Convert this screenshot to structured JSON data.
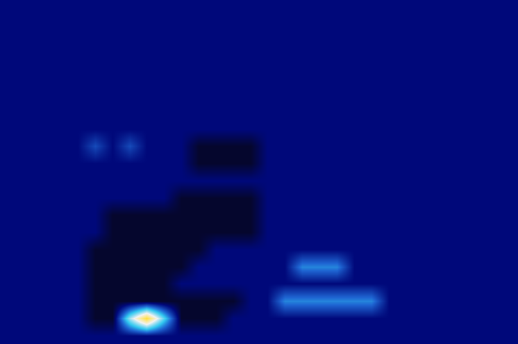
{
  "chart_data": {
    "type": "heatmap",
    "tick_labels": false,
    "xlim": [
      -0.5,
      29.5
    ],
    "ylim": [
      19.5,
      -0.5
    ],
    "zlim": [
      0,
      1
    ],
    "cells": [
      [
        0.12,
        0.12,
        0.12,
        0.12,
        0.12,
        0.12,
        0.12,
        0.12,
        0.12,
        0.12,
        0.12,
        0.12,
        0.12,
        0.12,
        0.12,
        0.12,
        0.12,
        0.12,
        0.12,
        0.12,
        0.12,
        0.12,
        0.12,
        0.12,
        0.12,
        0.12,
        0.12,
        0.12,
        0.12,
        0.12
      ],
      [
        0.12,
        0.12,
        0.12,
        0.12,
        0.12,
        0.12,
        0.12,
        0.12,
        0.12,
        0.12,
        0.12,
        0.12,
        0.12,
        0.12,
        0.12,
        0.12,
        0.12,
        0.12,
        0.12,
        0.12,
        0.12,
        0.12,
        0.12,
        0.12,
        0.12,
        0.12,
        0.12,
        0.12,
        0.12,
        0.12
      ],
      [
        0.12,
        0.12,
        0.12,
        0.12,
        0.12,
        0.12,
        0.12,
        0.12,
        0.12,
        0.12,
        0.12,
        0.12,
        0.12,
        0.12,
        0.12,
        0.12,
        0.12,
        0.12,
        0.12,
        0.12,
        0.12,
        0.12,
        0.12,
        0.12,
        0.12,
        0.12,
        0.12,
        0.12,
        0.12,
        0.12
      ],
      [
        0.12,
        0.12,
        0.12,
        0.12,
        0.12,
        0.12,
        0.12,
        0.12,
        0.12,
        0.12,
        0.12,
        0.12,
        0.12,
        0.12,
        0.12,
        0.12,
        0.12,
        0.12,
        0.12,
        0.12,
        0.12,
        0.12,
        0.12,
        0.12,
        0.12,
        0.12,
        0.12,
        0.12,
        0.12,
        0.12
      ],
      [
        0.12,
        0.12,
        0.12,
        0.12,
        0.12,
        0.12,
        0.12,
        0.12,
        0.12,
        0.12,
        0.12,
        0.12,
        0.12,
        0.12,
        0.12,
        0.12,
        0.12,
        0.12,
        0.12,
        0.12,
        0.12,
        0.12,
        0.12,
        0.12,
        0.12,
        0.12,
        0.12,
        0.12,
        0.12,
        0.12
      ],
      [
        0.12,
        0.12,
        0.12,
        0.12,
        0.12,
        0.12,
        0.12,
        0.12,
        0.12,
        0.12,
        0.12,
        0.12,
        0.12,
        0.12,
        0.12,
        0.12,
        0.12,
        0.12,
        0.12,
        0.12,
        0.12,
        0.12,
        0.12,
        0.12,
        0.12,
        0.12,
        0.12,
        0.12,
        0.12,
        0.12
      ],
      [
        0.12,
        0.12,
        0.12,
        0.12,
        0.12,
        0.12,
        0.12,
        0.12,
        0.12,
        0.12,
        0.12,
        0.12,
        0.12,
        0.12,
        0.12,
        0.12,
        0.12,
        0.12,
        0.12,
        0.12,
        0.12,
        0.12,
        0.12,
        0.12,
        0.12,
        0.12,
        0.12,
        0.12,
        0.12,
        0.12
      ],
      [
        0.12,
        0.12,
        0.12,
        0.12,
        0.12,
        0.12,
        0.12,
        0.12,
        0.12,
        0.12,
        0.12,
        0.12,
        0.12,
        0.12,
        0.12,
        0.12,
        0.12,
        0.12,
        0.12,
        0.12,
        0.12,
        0.12,
        0.12,
        0.12,
        0.12,
        0.12,
        0.12,
        0.12,
        0.12,
        0.12
      ],
      [
        0.12,
        0.12,
        0.12,
        0.12,
        0.12,
        0.25,
        0.12,
        0.25,
        0.12,
        0.12,
        0.12,
        0.02,
        0.02,
        0.02,
        0.02,
        0.12,
        0.12,
        0.12,
        0.12,
        0.12,
        0.12,
        0.12,
        0.12,
        0.12,
        0.12,
        0.12,
        0.12,
        0.12,
        0.12,
        0.12
      ],
      [
        0.12,
        0.12,
        0.12,
        0.12,
        0.12,
        0.12,
        0.12,
        0.12,
        0.12,
        0.12,
        0.12,
        0.02,
        0.02,
        0.02,
        0.02,
        0.12,
        0.12,
        0.12,
        0.12,
        0.12,
        0.12,
        0.12,
        0.12,
        0.12,
        0.12,
        0.12,
        0.12,
        0.12,
        0.12,
        0.12
      ],
      [
        0.12,
        0.12,
        0.12,
        0.12,
        0.12,
        0.12,
        0.12,
        0.12,
        0.12,
        0.12,
        0.12,
        0.12,
        0.12,
        0.12,
        0.12,
        0.12,
        0.12,
        0.12,
        0.12,
        0.12,
        0.12,
        0.12,
        0.12,
        0.12,
        0.12,
        0.12,
        0.12,
        0.12,
        0.12,
        0.12
      ],
      [
        0.12,
        0.12,
        0.12,
        0.12,
        0.12,
        0.12,
        0.12,
        0.12,
        0.12,
        0.12,
        0.02,
        0.02,
        0.02,
        0.02,
        0.02,
        0.12,
        0.12,
        0.12,
        0.12,
        0.12,
        0.12,
        0.12,
        0.12,
        0.12,
        0.12,
        0.12,
        0.12,
        0.12,
        0.12,
        0.12
      ],
      [
        0.12,
        0.12,
        0.12,
        0.12,
        0.12,
        0.12,
        0.02,
        0.02,
        0.02,
        0.02,
        0.02,
        0.02,
        0.02,
        0.02,
        0.02,
        0.12,
        0.12,
        0.12,
        0.12,
        0.12,
        0.12,
        0.12,
        0.12,
        0.12,
        0.12,
        0.12,
        0.12,
        0.12,
        0.12,
        0.12
      ],
      [
        0.12,
        0.12,
        0.12,
        0.12,
        0.12,
        0.12,
        0.02,
        0.02,
        0.02,
        0.02,
        0.02,
        0.02,
        0.02,
        0.02,
        0.02,
        0.12,
        0.12,
        0.12,
        0.12,
        0.12,
        0.12,
        0.12,
        0.12,
        0.12,
        0.12,
        0.12,
        0.12,
        0.12,
        0.12,
        0.12
      ],
      [
        0.12,
        0.12,
        0.12,
        0.12,
        0.12,
        0.02,
        0.02,
        0.02,
        0.02,
        0.02,
        0.02,
        0.02,
        0.12,
        0.12,
        0.12,
        0.12,
        0.12,
        0.12,
        0.12,
        0.12,
        0.12,
        0.12,
        0.12,
        0.12,
        0.12,
        0.12,
        0.12,
        0.12,
        0.12,
        0.12
      ],
      [
        0.12,
        0.12,
        0.12,
        0.12,
        0.12,
        0.02,
        0.02,
        0.02,
        0.02,
        0.02,
        0.02,
        0.12,
        0.12,
        0.12,
        0.12,
        0.12,
        0.12,
        0.35,
        0.35,
        0.35,
        0.12,
        0.12,
        0.12,
        0.12,
        0.12,
        0.12,
        0.12,
        0.12,
        0.12,
        0.12
      ],
      [
        0.12,
        0.12,
        0.12,
        0.12,
        0.12,
        0.02,
        0.02,
        0.02,
        0.02,
        0.02,
        0.12,
        0.12,
        0.12,
        0.12,
        0.12,
        0.12,
        0.12,
        0.12,
        0.12,
        0.12,
        0.12,
        0.12,
        0.12,
        0.12,
        0.12,
        0.12,
        0.12,
        0.12,
        0.12,
        0.12
      ],
      [
        0.12,
        0.12,
        0.12,
        0.12,
        0.12,
        0.02,
        0.02,
        0.02,
        0.02,
        0.02,
        0.02,
        0.02,
        0.02,
        0.02,
        0.12,
        0.12,
        0.35,
        0.35,
        0.35,
        0.35,
        0.35,
        0.35,
        0.12,
        0.12,
        0.12,
        0.12,
        0.12,
        0.12,
        0.12,
        0.12
      ],
      [
        0.12,
        0.12,
        0.12,
        0.12,
        0.12,
        0.02,
        0.02,
        0.6,
        1,
        0.5,
        0.02,
        0.02,
        0.02,
        0.12,
        0.12,
        0.12,
        0.12,
        0.12,
        0.12,
        0.12,
        0.12,
        0.12,
        0.12,
        0.12,
        0.12,
        0.12,
        0.12,
        0.12,
        0.12,
        0.12
      ],
      [
        0.12,
        0.12,
        0.12,
        0.12,
        0.12,
        0.12,
        0.12,
        0.12,
        0.12,
        0.12,
        0.12,
        0.12,
        0.12,
        0.12,
        0.12,
        0.12,
        0.12,
        0.12,
        0.12,
        0.12,
        0.12,
        0.12,
        0.12,
        0.12,
        0.12,
        0.12,
        0.12,
        0.12,
        0.12,
        0.12
      ]
    ]
  }
}
